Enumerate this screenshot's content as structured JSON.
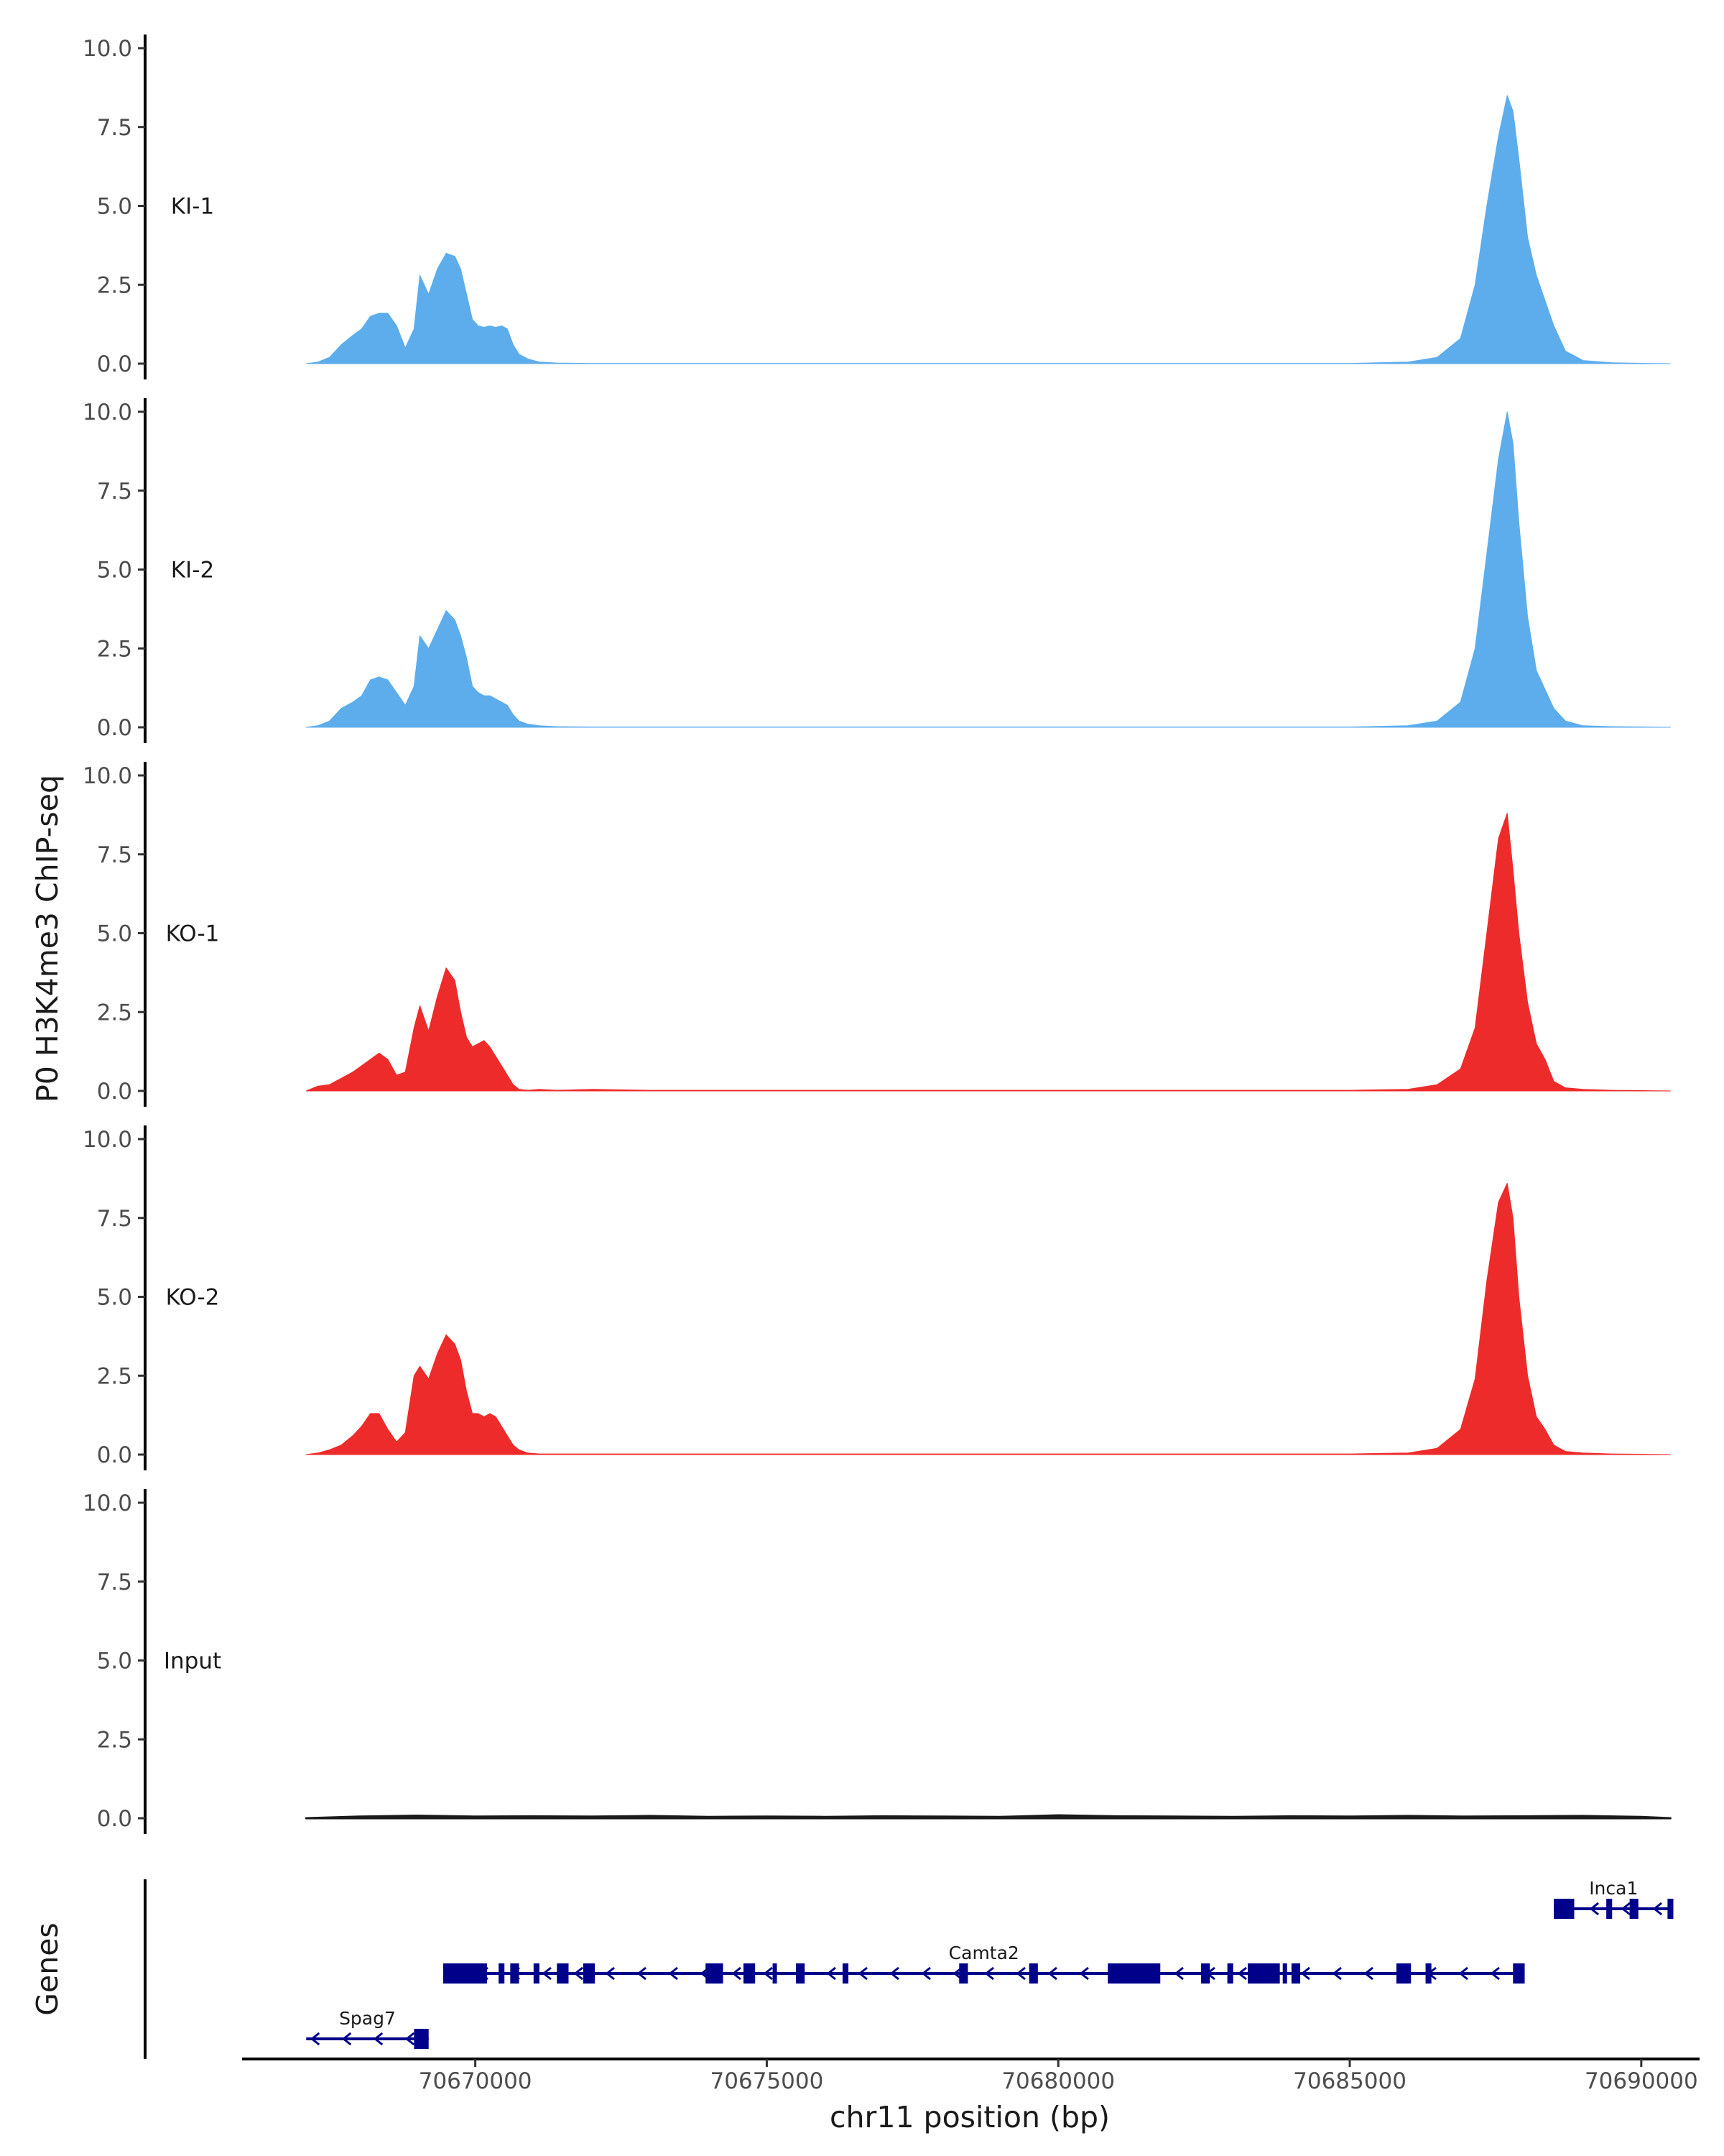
{
  "chart_data": {
    "type": "area",
    "ylabel": "P0 H3K4me3 ChIP-seq",
    "xlabel": "chr11 position (bp)",
    "genes_label": "Genes",
    "x_range": [
      70666000,
      70691000
    ],
    "y_range": [
      0,
      10.4
    ],
    "y_ticks": [
      0.0,
      2.5,
      5.0,
      7.5,
      10.0
    ],
    "y_tick_labels": [
      "0.0",
      "2.5",
      "5.0",
      "7.5",
      "10.0"
    ],
    "x_ticks": [
      70670000,
      70675000,
      70680000,
      70685000,
      70690000
    ],
    "x_tick_labels": [
      "70670000",
      "70675000",
      "70680000",
      "70685000",
      "70690000"
    ],
    "colors": {
      "KI": "#5DADEC",
      "KO": "#EE2B2B",
      "Input": "#1a1a1a",
      "gene": "#00008B"
    },
    "series": [
      {
        "name": "KI-1",
        "color": "#5DADEC",
        "x": [
          70667100,
          70667300,
          70667500,
          70667700,
          70667900,
          70668050,
          70668200,
          70668350,
          70668500,
          70668650,
          70668800,
          70668950,
          70669050,
          70669200,
          70669350,
          70669500,
          70669650,
          70669750,
          70669850,
          70669950,
          70670050,
          70670150,
          70670250,
          70670350,
          70670450,
          70670550,
          70670650,
          70670750,
          70670900,
          70671100,
          70671400,
          70672000,
          70673000,
          70676000,
          70680000,
          70683000,
          70685000,
          70686000,
          70686500,
          70686900,
          70687150,
          70687350,
          70687550,
          70687700,
          70687800,
          70687900,
          70688050,
          70688200,
          70688350,
          70688500,
          70688700,
          70689000,
          70689500,
          70690100,
          70690500
        ],
        "values": [
          0.0,
          0.05,
          0.2,
          0.6,
          0.9,
          1.1,
          1.5,
          1.6,
          1.6,
          1.2,
          0.5,
          1.1,
          2.8,
          2.2,
          3.0,
          3.5,
          3.4,
          3.0,
          2.2,
          1.4,
          1.2,
          1.15,
          1.2,
          1.15,
          1.2,
          1.1,
          0.6,
          0.3,
          0.15,
          0.05,
          0.02,
          0.01,
          0.01,
          0.01,
          0.01,
          0.01,
          0.01,
          0.05,
          0.2,
          0.8,
          2.5,
          5.0,
          7.2,
          8.5,
          8.0,
          6.5,
          4.0,
          2.8,
          2.0,
          1.2,
          0.4,
          0.1,
          0.03,
          0.01,
          0.0
        ]
      },
      {
        "name": "KI-2",
        "color": "#5DADEC",
        "x": [
          70667100,
          70667300,
          70667500,
          70667700,
          70667900,
          70668050,
          70668200,
          70668350,
          70668500,
          70668650,
          70668800,
          70668950,
          70669050,
          70669200,
          70669350,
          70669500,
          70669650,
          70669750,
          70669850,
          70669950,
          70670050,
          70670150,
          70670250,
          70670350,
          70670450,
          70670550,
          70670650,
          70670750,
          70670900,
          70671100,
          70671400,
          70672000,
          70673000,
          70676000,
          70680000,
          70683000,
          70685000,
          70686000,
          70686500,
          70686900,
          70687150,
          70687350,
          70687550,
          70687700,
          70687800,
          70687900,
          70688050,
          70688200,
          70688350,
          70688500,
          70688700,
          70689000,
          70689500,
          70690100,
          70690500
        ],
        "values": [
          0.0,
          0.05,
          0.2,
          0.6,
          0.8,
          1.0,
          1.5,
          1.6,
          1.5,
          1.1,
          0.7,
          1.3,
          2.9,
          2.5,
          3.1,
          3.7,
          3.4,
          2.9,
          2.2,
          1.3,
          1.1,
          1.0,
          1.0,
          0.9,
          0.8,
          0.7,
          0.4,
          0.2,
          0.1,
          0.05,
          0.02,
          0.01,
          0.01,
          0.01,
          0.01,
          0.01,
          0.01,
          0.05,
          0.2,
          0.8,
          2.5,
          5.5,
          8.5,
          10.0,
          9.0,
          6.5,
          3.5,
          1.8,
          1.2,
          0.6,
          0.2,
          0.05,
          0.02,
          0.01,
          0.0
        ]
      },
      {
        "name": "KO-1",
        "color": "#EE2B2B",
        "x": [
          70667100,
          70667300,
          70667500,
          70667700,
          70667900,
          70668050,
          70668200,
          70668350,
          70668500,
          70668650,
          70668800,
          70668950,
          70669050,
          70669200,
          70669350,
          70669500,
          70669650,
          70669750,
          70669850,
          70669950,
          70670050,
          70670150,
          70670250,
          70670350,
          70670450,
          70670550,
          70670650,
          70670750,
          70670900,
          70671100,
          70671400,
          70672000,
          70673000,
          70676000,
          70680000,
          70683000,
          70685000,
          70686000,
          70686500,
          70686900,
          70687150,
          70687350,
          70687550,
          70687700,
          70687800,
          70687900,
          70688050,
          70688200,
          70688350,
          70688500,
          70688700,
          70689000,
          70689500,
          70690100,
          70690500
        ],
        "values": [
          0.0,
          0.15,
          0.2,
          0.4,
          0.6,
          0.8,
          1.0,
          1.2,
          1.0,
          0.5,
          0.6,
          2.0,
          2.7,
          1.9,
          3.0,
          3.9,
          3.5,
          2.5,
          1.7,
          1.4,
          1.5,
          1.6,
          1.4,
          1.1,
          0.8,
          0.5,
          0.2,
          0.05,
          0.02,
          0.05,
          0.02,
          0.05,
          0.02,
          0.02,
          0.02,
          0.02,
          0.02,
          0.05,
          0.2,
          0.7,
          2.0,
          5.0,
          8.0,
          8.8,
          7.0,
          5.0,
          2.8,
          1.5,
          1.0,
          0.3,
          0.1,
          0.05,
          0.02,
          0.01,
          0.0
        ]
      },
      {
        "name": "KO-2",
        "color": "#EE2B2B",
        "x": [
          70667100,
          70667300,
          70667500,
          70667700,
          70667900,
          70668050,
          70668200,
          70668350,
          70668500,
          70668650,
          70668800,
          70668950,
          70669050,
          70669200,
          70669350,
          70669500,
          70669650,
          70669750,
          70669850,
          70669950,
          70670050,
          70670150,
          70670250,
          70670350,
          70670450,
          70670550,
          70670650,
          70670750,
          70670900,
          70671100,
          70671400,
          70672000,
          70673000,
          70676000,
          70680000,
          70683000,
          70685000,
          70686000,
          70686500,
          70686900,
          70687150,
          70687350,
          70687550,
          70687700,
          70687800,
          70687900,
          70688050,
          70688200,
          70688350,
          70688500,
          70688700,
          70689000,
          70689500,
          70690100,
          70690500
        ],
        "values": [
          0.0,
          0.05,
          0.15,
          0.3,
          0.6,
          0.9,
          1.3,
          1.3,
          0.8,
          0.4,
          0.7,
          2.5,
          2.8,
          2.4,
          3.2,
          3.8,
          3.5,
          3.0,
          2.0,
          1.3,
          1.3,
          1.2,
          1.3,
          1.2,
          0.9,
          0.6,
          0.3,
          0.15,
          0.05,
          0.02,
          0.02,
          0.02,
          0.02,
          0.02,
          0.02,
          0.02,
          0.02,
          0.05,
          0.2,
          0.8,
          2.4,
          5.5,
          8.0,
          8.6,
          7.5,
          5.0,
          2.5,
          1.2,
          0.8,
          0.3,
          0.1,
          0.05,
          0.02,
          0.01,
          0.0
        ]
      },
      {
        "name": "Input",
        "color": "#1a1a1a",
        "x": [
          70667100,
          70668000,
          70669000,
          70670000,
          70671000,
          70672000,
          70673000,
          70674000,
          70675000,
          70676000,
          70677000,
          70678000,
          70679000,
          70680000,
          70681000,
          70682000,
          70683000,
          70684000,
          70685000,
          70686000,
          70687000,
          70688000,
          70689000,
          70690000,
          70690500
        ],
        "values": [
          0.0,
          0.05,
          0.08,
          0.05,
          0.06,
          0.05,
          0.07,
          0.04,
          0.05,
          0.04,
          0.06,
          0.05,
          0.04,
          0.09,
          0.06,
          0.05,
          0.04,
          0.06,
          0.05,
          0.07,
          0.05,
          0.06,
          0.07,
          0.04,
          0.0
        ]
      }
    ],
    "genes": [
      {
        "name": "Inca1",
        "row": 3,
        "strand": "-",
        "start": 70688500,
        "end": 70690550,
        "exons": [
          [
            70688500,
            70688850
          ],
          [
            70689400,
            70689500
          ],
          [
            70689800,
            70689950
          ],
          [
            70690450,
            70690550
          ]
        ]
      },
      {
        "name": "Camta2",
        "row": 2,
        "strand": "-",
        "start": 70669450,
        "end": 70688000,
        "exons": [
          [
            70669450,
            70670200
          ],
          [
            70670400,
            70670500
          ],
          [
            70670600,
            70670750
          ],
          [
            70671000,
            70671100
          ],
          [
            70671400,
            70671600
          ],
          [
            70671850,
            70672050
          ],
          [
            70673950,
            70674250
          ],
          [
            70674600,
            70674800
          ],
          [
            70675100,
            70675150
          ],
          [
            70675500,
            70675650
          ],
          [
            70676300,
            70676400
          ],
          [
            70678300,
            70678450
          ],
          [
            70679500,
            70679650
          ],
          [
            70680850,
            70681750
          ],
          [
            70682450,
            70682600
          ],
          [
            70682900,
            70683000
          ],
          [
            70683250,
            70683800
          ],
          [
            70683850,
            70683900
          ],
          [
            70684000,
            70684150
          ],
          [
            70685800,
            70686050
          ],
          [
            70686300,
            70686400
          ],
          [
            70687800,
            70688000
          ]
        ]
      },
      {
        "name": "Spag7",
        "row": 1,
        "strand": "-",
        "start": 70667100,
        "end": 70669200,
        "exons": [
          [
            70668950,
            70669200
          ]
        ]
      }
    ]
  }
}
